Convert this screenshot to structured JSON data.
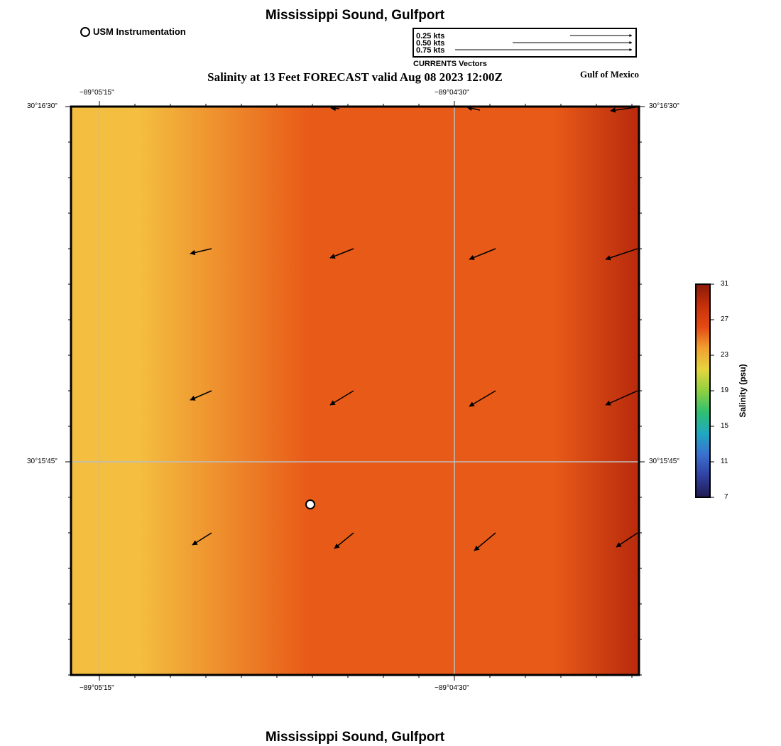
{
  "header": {
    "title": "Mississippi Sound, Gulfport",
    "subtitle": "Salinity at 13 Feet FORECAST valid Aug 08 2023 12:00Z",
    "region": "Gulf of Mexico",
    "footer_title": "Mississippi Sound, Gulfport"
  },
  "legend": {
    "station_label": "USM Instrumentation",
    "vectors_title": "CURRENTS Vectors",
    "vector_scale": [
      {
        "label": "0.25 kts",
        "kts": 0.25
      },
      {
        "label": "0.50 kts",
        "kts": 0.5
      },
      {
        "label": "0.75 kts",
        "kts": 0.75
      }
    ]
  },
  "axes": {
    "lon_labels": [
      "−89°05'15\"",
      "−89°04'30\""
    ],
    "lat_labels": [
      "30°16'30\"",
      "30°15'45\""
    ]
  },
  "colorbar": {
    "label": "Salinity (psu)",
    "ticks": [
      "31",
      "27",
      "23",
      "19",
      "15",
      "11",
      "7"
    ],
    "colors": [
      "#8a1a0a",
      "#c4300a",
      "#e44a12",
      "#f0a030",
      "#e6d440",
      "#90d040",
      "#30c070",
      "#20a8c0",
      "#3a70d0",
      "#3040a0",
      "#201a50"
    ]
  },
  "field_colors": {
    "fresh": "#f4be40",
    "mid": "#e85a18",
    "salty": "#b82a0c"
  },
  "station": {
    "name": "USM Instrumentation"
  },
  "current_vectors_note": "arrows",
  "chart_data": {
    "type": "vector-field",
    "rows": [
      {
        "vectors": [
          {
            "u": -0.3,
            "v": -0.07
          },
          {
            "u": -0.33,
            "v": -0.13
          },
          {
            "u": -0.37,
            "v": -0.15
          },
          {
            "u": -0.45,
            "v": -0.15
          }
        ]
      },
      {
        "vectors": [
          {
            "u": -0.3,
            "v": -0.13
          },
          {
            "u": -0.33,
            "v": -0.2
          },
          {
            "u": -0.37,
            "v": -0.22
          },
          {
            "u": -0.45,
            "v": -0.2
          }
        ]
      },
      {
        "vectors": [
          {
            "u": -0.27,
            "v": -0.17
          },
          {
            "u": -0.27,
            "v": -0.22
          },
          {
            "u": -0.3,
            "v": -0.25
          },
          {
            "u": -0.3,
            "v": -0.2
          }
        ]
      }
    ]
  }
}
